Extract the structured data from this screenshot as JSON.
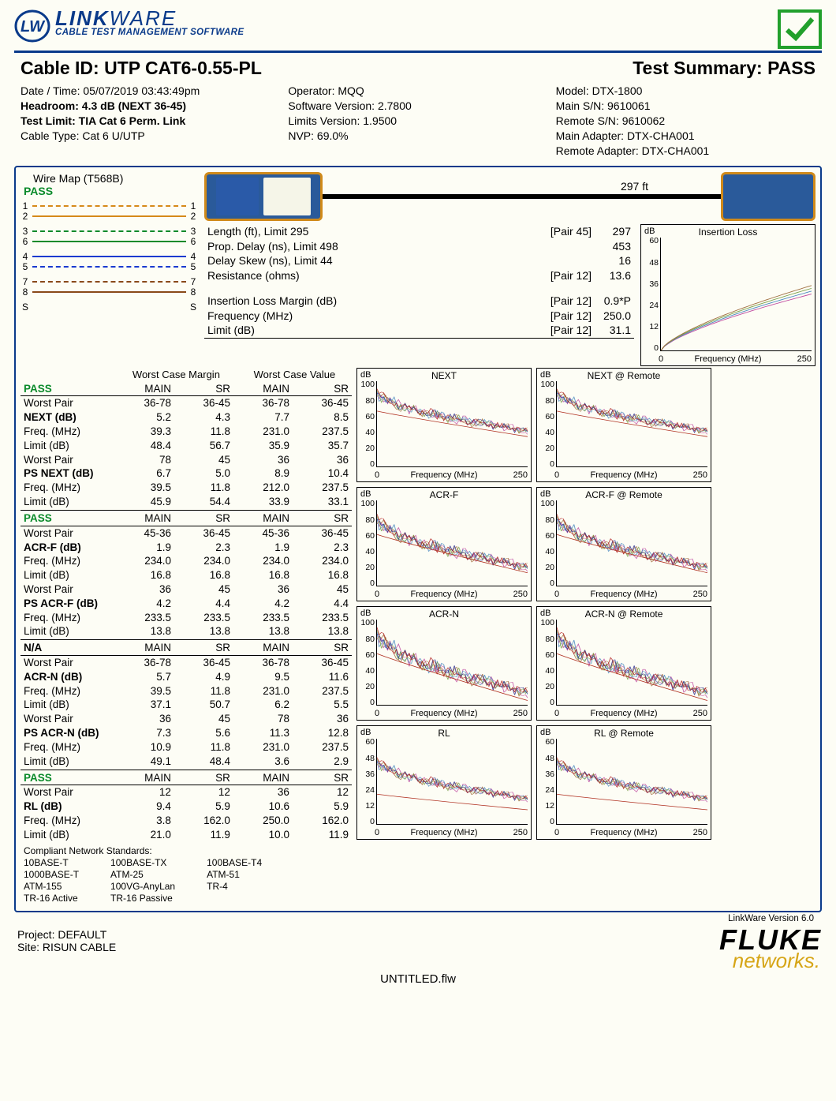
{
  "brand": {
    "name_strong": "LINK",
    "name_light": "WARE",
    "sub": "CABLE TEST MANAGEMENT SOFTWARE"
  },
  "title": {
    "cable_id_label": "Cable ID:",
    "cable_id": "UTP CAT6-0.55-PL",
    "summary_label": "Test Summary:",
    "summary": "PASS"
  },
  "meta": {
    "c1": {
      "datetime_label": "Date / Time:",
      "datetime": "05/07/2019 03:43:49pm",
      "headroom_label": "Headroom:",
      "headroom": "4.3 dB (NEXT 36-45)",
      "testlimit_label": "Test Limit:",
      "testlimit": "TIA Cat 6 Perm. Link",
      "cabletype_label": "Cable Type:",
      "cabletype": "Cat 6 U/UTP"
    },
    "c2": {
      "op_label": "Operator:",
      "op": "MQQ",
      "sw_label": "Software Version:",
      "sw": "2.7800",
      "lim_label": "Limits Version:",
      "lim": "1.9500",
      "nvp_label": "NVP:",
      "nvp": "69.0%"
    },
    "c3": {
      "model_label": "Model:",
      "model": "DTX-1800",
      "mainsn_label": "Main S/N:",
      "mainsn": "9610061",
      "remsn_label": "Remote S/N:",
      "remsn": "9610062",
      "mainad_label": "Main Adapter:",
      "mainad": "DTX-CHA001",
      "remad_label": "Remote Adapter:",
      "remad": "DTX-CHA001"
    }
  },
  "wiremap": {
    "title": "Wire Map (T568B)",
    "pass": "PASS",
    "pairs": [
      {
        "n": "1",
        "color": "#d68a1a",
        "dash": true
      },
      {
        "n": "2",
        "color": "#d68a1a",
        "dash": false
      },
      {
        "n": "3",
        "color": "#0a8a2a",
        "dash": true
      },
      {
        "n": "6",
        "color": "#0a8a2a",
        "dash": false
      },
      {
        "n": "4",
        "color": "#1a3ad0",
        "dash": false
      },
      {
        "n": "5",
        "color": "#1a3ad0",
        "dash": true
      },
      {
        "n": "7",
        "color": "#8a4a1a",
        "dash": true
      },
      {
        "n": "8",
        "color": "#8a4a1a",
        "dash": false
      },
      {
        "n": "S",
        "shield": true
      }
    ]
  },
  "cable_length": "297 ft",
  "measurements": [
    {
      "label": "Length (ft), Limit 295",
      "pair": "[Pair 45]",
      "val": "297"
    },
    {
      "label": "Prop. Delay (ns), Limit 498",
      "pair": "",
      "val": "453"
    },
    {
      "label": "Delay Skew (ns), Limit 44",
      "pair": "",
      "val": "16"
    },
    {
      "label": "Resistance (ohms)",
      "pair": "[Pair 12]",
      "val": "13.6"
    }
  ],
  "measurements2": [
    {
      "label": "Insertion Loss Margin (dB)",
      "pair": "[Pair 12]",
      "val": "0.9*P"
    },
    {
      "label": "Frequency (MHz)",
      "pair": "[Pair 12]",
      "val": "250.0"
    },
    {
      "label": "Limit (dB)",
      "pair": "[Pair 12]",
      "val": "31.1"
    }
  ],
  "tables_hdr": {
    "wcm": "Worst Case Margin",
    "wcv": "Worst Case Value",
    "main": "MAIN",
    "sr": "SR"
  },
  "tables": [
    {
      "status": "PASS",
      "rows": [
        {
          "l": "Worst Pair",
          "a": "36-78",
          "b": "36-45",
          "c": "36-78",
          "d": "36-45"
        },
        {
          "l": "NEXT (dB)",
          "bold": true,
          "a": "5.2",
          "b": "4.3",
          "c": "7.7",
          "d": "8.5"
        },
        {
          "l": "Freq. (MHz)",
          "a": "39.3",
          "b": "11.8",
          "c": "231.0",
          "d": "237.5"
        },
        {
          "l": "Limit (dB)",
          "a": "48.4",
          "b": "56.7",
          "c": "35.9",
          "d": "35.7"
        },
        {
          "l": "Worst Pair",
          "a": "78",
          "b": "45",
          "c": "36",
          "d": "36"
        },
        {
          "l": "PS NEXT (dB)",
          "bold": true,
          "a": "6.7",
          "b": "5.0",
          "c": "8.9",
          "d": "10.4"
        },
        {
          "l": "Freq. (MHz)",
          "a": "39.5",
          "b": "11.8",
          "c": "212.0",
          "d": "237.5"
        },
        {
          "l": "Limit (dB)",
          "a": "45.9",
          "b": "54.4",
          "c": "33.9",
          "d": "33.1"
        }
      ]
    },
    {
      "status": "PASS",
      "rows": [
        {
          "l": "Worst Pair",
          "a": "45-36",
          "b": "36-45",
          "c": "45-36",
          "d": "36-45"
        },
        {
          "l": "ACR-F (dB)",
          "bold": true,
          "a": "1.9",
          "b": "2.3",
          "c": "1.9",
          "d": "2.3"
        },
        {
          "l": "Freq. (MHz)",
          "a": "234.0",
          "b": "234.0",
          "c": "234.0",
          "d": "234.0"
        },
        {
          "l": "Limit (dB)",
          "a": "16.8",
          "b": "16.8",
          "c": "16.8",
          "d": "16.8"
        },
        {
          "l": "Worst Pair",
          "a": "36",
          "b": "45",
          "c": "36",
          "d": "45"
        },
        {
          "l": "PS ACR-F (dB)",
          "bold": true,
          "a": "4.2",
          "b": "4.4",
          "c": "4.2",
          "d": "4.4"
        },
        {
          "l": "Freq. (MHz)",
          "a": "233.5",
          "b": "233.5",
          "c": "233.5",
          "d": "233.5"
        },
        {
          "l": "Limit (dB)",
          "a": "13.8",
          "b": "13.8",
          "c": "13.8",
          "d": "13.8"
        }
      ]
    },
    {
      "status": "N/A",
      "status_color": "#000",
      "rows": [
        {
          "l": "Worst Pair",
          "a": "36-78",
          "b": "36-45",
          "c": "36-78",
          "d": "36-45"
        },
        {
          "l": "ACR-N (dB)",
          "bold": true,
          "a": "5.7",
          "b": "4.9",
          "c": "9.5",
          "d": "11.6"
        },
        {
          "l": "Freq. (MHz)",
          "a": "39.5",
          "b": "11.8",
          "c": "231.0",
          "d": "237.5"
        },
        {
          "l": "Limit (dB)",
          "a": "37.1",
          "b": "50.7",
          "c": "6.2",
          "d": "5.5"
        },
        {
          "l": "Worst Pair",
          "a": "36",
          "b": "45",
          "c": "78",
          "d": "36"
        },
        {
          "l": "PS ACR-N (dB)",
          "bold": true,
          "a": "7.3",
          "b": "5.6",
          "c": "11.3",
          "d": "12.8"
        },
        {
          "l": "Freq. (MHz)",
          "a": "10.9",
          "b": "11.8",
          "c": "231.0",
          "d": "237.5"
        },
        {
          "l": "Limit (dB)",
          "a": "49.1",
          "b": "48.4",
          "c": "3.6",
          "d": "2.9"
        }
      ]
    },
    {
      "status": "PASS",
      "rows": [
        {
          "l": "Worst Pair",
          "a": "12",
          "b": "12",
          "c": "36",
          "d": "12"
        },
        {
          "l": "RL (dB)",
          "bold": true,
          "a": "9.4",
          "b": "5.9",
          "c": "10.6",
          "d": "5.9"
        },
        {
          "l": "Freq. (MHz)",
          "a": "3.8",
          "b": "162.0",
          "c": "250.0",
          "d": "162.0"
        },
        {
          "l": "Limit (dB)",
          "a": "21.0",
          "b": "11.9",
          "c": "10.0",
          "d": "11.9"
        }
      ]
    }
  ],
  "standards": {
    "hdr": "Compliant Network Standards:",
    "cols": [
      [
        "10BASE-T",
        "1000BASE-T",
        "ATM-155",
        "TR-16 Active"
      ],
      [
        "100BASE-TX",
        "ATM-25",
        "100VG-AnyLan",
        "TR-16 Passive"
      ],
      [
        "100BASE-T4",
        "ATM-51",
        "TR-4"
      ]
    ]
  },
  "chart_common": {
    "xlabel": "Frequency (MHz)",
    "xmin": "0",
    "xmax": "250",
    "ylabel": "dB",
    "line_colors": [
      "#c04aa0",
      "#4a8ac0",
      "#7aa04a",
      "#a07040",
      "#303090",
      "#b02020"
    ],
    "limit_color": "#b03020"
  },
  "charts": {
    "il": {
      "title": "Insertion Loss",
      "yticks": [
        "60",
        "48",
        "36",
        "24",
        "12",
        "0"
      ],
      "type": "rising",
      "ymax": 60,
      "end": 30
    },
    "next": {
      "title": "NEXT",
      "yticks": [
        "100",
        "80",
        "60",
        "40",
        "20",
        "0"
      ],
      "type": "noisy-fall",
      "ymax": 100,
      "start": 88,
      "end": 42,
      "limit_start": 65,
      "limit_end": 35
    },
    "next_r": {
      "title": "NEXT @ Remote",
      "yticks": [
        "100",
        "80",
        "60",
        "40",
        "20",
        "0"
      ],
      "type": "noisy-fall",
      "ymax": 100,
      "start": 88,
      "end": 42,
      "limit_start": 65,
      "limit_end": 35
    },
    "acrf": {
      "title": "ACR-F",
      "yticks": [
        "100",
        "80",
        "60",
        "40",
        "20",
        "0"
      ],
      "type": "noisy-fall",
      "ymax": 100,
      "start": 80,
      "end": 22,
      "limit_start": 60,
      "limit_end": 15
    },
    "acrf_r": {
      "title": "ACR-F @ Remote",
      "yticks": [
        "100",
        "80",
        "60",
        "40",
        "20",
        "0"
      ],
      "type": "noisy-fall",
      "ymax": 100,
      "start": 80,
      "end": 22,
      "limit_start": 60,
      "limit_end": 15
    },
    "acrn": {
      "title": "ACR-N",
      "yticks": [
        "100",
        "80",
        "60",
        "40",
        "20",
        "0"
      ],
      "type": "noisy-fall",
      "ymax": 100,
      "start": 86,
      "end": 15,
      "limit_start": 60,
      "limit_end": 5
    },
    "acrn_r": {
      "title": "ACR-N @ Remote",
      "yticks": [
        "100",
        "80",
        "60",
        "40",
        "20",
        "0"
      ],
      "type": "noisy-fall",
      "ymax": 100,
      "start": 86,
      "end": 15,
      "limit_start": 60,
      "limit_end": 5
    },
    "rl": {
      "title": "RL",
      "yticks": [
        "60",
        "48",
        "36",
        "24",
        "12",
        "0"
      ],
      "type": "noisy-fall",
      "ymax": 60,
      "start": 45,
      "end": 18,
      "limit_start": 21,
      "limit_end": 10
    },
    "rl_r": {
      "title": "RL @ Remote",
      "yticks": [
        "60",
        "48",
        "36",
        "24",
        "12",
        "0"
      ],
      "type": "noisy-fall",
      "ymax": 60,
      "start": 45,
      "end": 18,
      "limit_start": 21,
      "limit_end": 10
    }
  },
  "version": "LinkWare Version  6.0",
  "footer": {
    "project_label": "Project:",
    "project": "DEFAULT",
    "site_label": "Site:",
    "site": "RISUN CABLE"
  },
  "fluke": {
    "l1": "FLUKE",
    "l2": "networks."
  },
  "filename": "UNTITLED.flw"
}
